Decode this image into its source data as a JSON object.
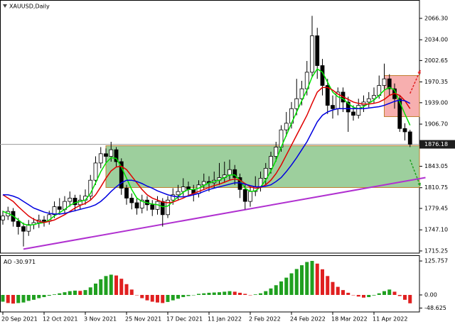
{
  "chart_data": {
    "type": "candlestick",
    "title": "XAUUSD,Daily",
    "categories": [
      "20 Sep 2021",
      null,
      null,
      null,
      null,
      null,
      null,
      null,
      "12 Oct 2021",
      null,
      null,
      null,
      null,
      null,
      null,
      null,
      "3 Nov 2021",
      null,
      null,
      null,
      null,
      null,
      null,
      null,
      "25 Nov 2021",
      null,
      null,
      null,
      null,
      null,
      null,
      null,
      "17 Dec 2021",
      null,
      null,
      null,
      null,
      null,
      null,
      null,
      "11 Jan 2022",
      null,
      null,
      null,
      null,
      null,
      null,
      null,
      "2 Feb 2022",
      null,
      null,
      null,
      null,
      null,
      null,
      null,
      "24 Feb 2022",
      null,
      null,
      null,
      null,
      null,
      null,
      null,
      "18 Mar 2022",
      null,
      null,
      null,
      null,
      null,
      null,
      null,
      "11 Apr 2022",
      null,
      null,
      null,
      null,
      null,
      null,
      null
    ],
    "open": [
      1762,
      1768,
      1775,
      1760,
      1752,
      1745,
      1755,
      1758,
      1762,
      1760,
      1770,
      1782,
      1778,
      1790,
      1795,
      1785,
      1792,
      1798,
      1822,
      1848,
      1862,
      1858,
      1868,
      1850,
      1810,
      1795,
      1788,
      1780,
      1792,
      1785,
      1778,
      1790,
      1770,
      1792,
      1800,
      1805,
      1812,
      1808,
      1802,
      1815,
      1820,
      1818,
      1822,
      1826,
      1830,
      1838,
      1826,
      1808,
      1790,
      1805,
      1812,
      1825,
      1840,
      1858,
      1872,
      1898,
      1908,
      1930,
      1945,
      1960,
      1985,
      2040,
      1995,
      1965,
      1935,
      1930,
      1955,
      1940,
      1925,
      1920,
      1935,
      1940,
      1945,
      1950,
      1965,
      1975,
      1960,
      1945,
      1900,
      1895
    ],
    "high": [
      1776,
      1782,
      1780,
      1765,
      1758,
      1762,
      1765,
      1770,
      1768,
      1776,
      1790,
      1795,
      1798,
      1805,
      1800,
      1800,
      1808,
      1830,
      1858,
      1872,
      1870,
      1880,
      1872,
      1855,
      1815,
      1802,
      1795,
      1800,
      1798,
      1792,
      1798,
      1795,
      1798,
      1810,
      1815,
      1825,
      1820,
      1815,
      1822,
      1832,
      1828,
      1835,
      1848,
      1850,
      1853,
      1845,
      1832,
      1815,
      1812,
      1828,
      1835,
      1848,
      1865,
      1880,
      1905,
      1925,
      1940,
      1975,
      1972,
      2002,
      2070,
      2052,
      2005,
      1975,
      1950,
      1962,
      1962,
      1948,
      1935,
      1945,
      1950,
      1955,
      1962,
      1980,
      1998,
      1982,
      1968,
      1950,
      1908,
      1898
    ],
    "low": [
      1755,
      1762,
      1752,
      1740,
      1722,
      1738,
      1748,
      1750,
      1752,
      1755,
      1765,
      1770,
      1772,
      1782,
      1775,
      1778,
      1785,
      1792,
      1815,
      1840,
      1848,
      1850,
      1842,
      1800,
      1785,
      1778,
      1770,
      1772,
      1776,
      1768,
      1770,
      1752,
      1765,
      1785,
      1792,
      1798,
      1798,
      1790,
      1796,
      1808,
      1805,
      1810,
      1815,
      1818,
      1822,
      1815,
      1795,
      1778,
      1782,
      1798,
      1805,
      1815,
      1832,
      1850,
      1865,
      1888,
      1900,
      1920,
      1935,
      1950,
      1978,
      1975,
      1950,
      1922,
      1915,
      1920,
      1925,
      1895,
      1912,
      1915,
      1925,
      1932,
      1938,
      1945,
      1958,
      1950,
      1930,
      1895,
      1882,
      1872
    ],
    "close": [
      1768,
      1775,
      1760,
      1752,
      1745,
      1755,
      1758,
      1762,
      1760,
      1770,
      1782,
      1778,
      1790,
      1795,
      1785,
      1792,
      1798,
      1822,
      1848,
      1862,
      1858,
      1868,
      1850,
      1810,
      1795,
      1788,
      1780,
      1792,
      1785,
      1778,
      1790,
      1770,
      1792,
      1800,
      1805,
      1812,
      1808,
      1802,
      1815,
      1820,
      1818,
      1822,
      1826,
      1830,
      1838,
      1826,
      1808,
      1790,
      1805,
      1812,
      1825,
      1840,
      1858,
      1872,
      1898,
      1908,
      1930,
      1945,
      1960,
      1985,
      2040,
      1995,
      1965,
      1935,
      1930,
      1955,
      1940,
      1925,
      1920,
      1935,
      1940,
      1945,
      1950,
      1965,
      1975,
      1960,
      1945,
      1900,
      1895,
      1876.18
    ],
    "up_color": "#ffffff",
    "down_color": "#000000",
    "lines": [
      {
        "color": "#00e000",
        "values": [
          1775,
          1772,
          1768,
          1762,
          1756,
          1754,
          1755,
          1757,
          1758,
          1762,
          1768,
          1773,
          1778,
          1784,
          1788,
          1790,
          1792,
          1802,
          1818,
          1835,
          1848,
          1856,
          1855,
          1842,
          1825,
          1808,
          1795,
          1790,
          1788,
          1786,
          1785,
          1782,
          1783,
          1790,
          1797,
          1804,
          1808,
          1808,
          1810,
          1814,
          1818,
          1820,
          1822,
          1826,
          1830,
          1830,
          1822,
          1810,
          1805,
          1806,
          1812,
          1822,
          1836,
          1852,
          1872,
          1890,
          1908,
          1925,
          1942,
          1958,
          1978,
          1990,
          1985,
          1970,
          1955,
          1948,
          1945,
          1938,
          1932,
          1930,
          1933,
          1938,
          1943,
          1950,
          1958,
          1962,
          1958,
          1940,
          1922,
          1905
        ]
      },
      {
        "color": "#e00000",
        "values": [
          1800,
          1795,
          1790,
          1782,
          1775,
          1768,
          1763,
          1760,
          1758,
          1760,
          1762,
          1766,
          1770,
          1775,
          1780,
          1784,
          1787,
          1792,
          1800,
          1812,
          1825,
          1836,
          1842,
          1843,
          1838,
          1828,
          1818,
          1808,
          1800,
          1795,
          1792,
          1789,
          1788,
          1789,
          1792,
          1795,
          1799,
          1802,
          1805,
          1808,
          1811,
          1814,
          1816,
          1819,
          1822,
          1824,
          1822,
          1817,
          1812,
          1810,
          1811,
          1815,
          1822,
          1832,
          1845,
          1860,
          1875,
          1890,
          1905,
          1920,
          1938,
          1955,
          1962,
          1962,
          1958,
          1952,
          1948,
          1944,
          1940,
          1938,
          1937,
          1937,
          1938,
          1940,
          1944,
          1950,
          1953,
          1950,
          1942,
          1930
        ]
      },
      {
        "color": "#0000e0",
        "values": [
          1800,
          1800,
          1798,
          1795,
          1790,
          1785,
          1780,
          1777,
          1774,
          1772,
          1771,
          1771,
          1772,
          1774,
          1776,
          1778,
          1780,
          1782,
          1785,
          1790,
          1797,
          1805,
          1812,
          1818,
          1822,
          1822,
          1820,
          1817,
          1813,
          1810,
          1806,
          1803,
          1800,
          1798,
          1797,
          1797,
          1798,
          1800,
          1802,
          1805,
          1808,
          1810,
          1812,
          1814,
          1816,
          1818,
          1818,
          1816,
          1814,
          1812,
          1812,
          1813,
          1815,
          1820,
          1826,
          1835,
          1845,
          1856,
          1868,
          1880,
          1895,
          1910,
          1920,
          1925,
          1928,
          1930,
          1930,
          1930,
          1930,
          1930,
          1930,
          1931,
          1932,
          1933,
          1935,
          1938,
          1941,
          1943,
          1942,
          1938
        ]
      }
    ],
    "zones": [
      {
        "color": "#3ca03c",
        "border": "#c08030",
        "start": 20,
        "low": 1811,
        "high": 1874
      },
      {
        "color": "#f06060",
        "border": "#c08030",
        "start": 74,
        "low": 1918,
        "high": 1980
      }
    ],
    "trendline": {
      "color": "#b030d0",
      "from": [
        4,
        1718
      ],
      "to": [
        82,
        1826
      ]
    },
    "arrows": [
      {
        "color": "#e02020",
        "from": [
          79,
          1953
        ],
        "to": [
          81,
          1988
        ]
      },
      {
        "color": "#20a020",
        "from": [
          79,
          1853
        ],
        "to": [
          81,
          1813
        ]
      }
    ],
    "ylim": [
      1712,
      2094
    ],
    "yticks": [
      {
        "value": 2066.3,
        "label": "2066.30"
      },
      {
        "value": 2034,
        "label": "2034.00"
      },
      2002.65,
      1970.35,
      {
        "value": 1939,
        "label": "1939.00"
      },
      {
        "value": 1906.7,
        "label": "1906.70"
      },
      1843.05,
      1810.75,
      1779.45,
      {
        "value": 1747.1,
        "label": "1747.10"
      },
      1715.25
    ],
    "ao": {
      "name": "AO",
      "up_color": "#20a020",
      "down_color": "#e02020",
      "values": [
        -25,
        -30,
        -32,
        -30,
        -28,
        -22,
        -18,
        -12,
        -8,
        -3,
        2,
        6,
        10,
        14,
        16,
        15,
        18,
        28,
        42,
        58,
        70,
        75,
        72,
        60,
        40,
        20,
        0,
        -12,
        -20,
        -25,
        -28,
        -30,
        -26,
        -20,
        -14,
        -8,
        -4,
        0,
        4,
        6,
        8,
        9,
        10,
        12,
        14,
        12,
        8,
        4,
        0,
        2,
        6,
        14,
        24,
        36,
        50,
        64,
        80,
        96,
        110,
        122,
        126,
        116,
        95,
        70,
        48,
        30,
        18,
        8,
        0,
        -6,
        -10,
        -8,
        -2,
        6,
        14,
        20,
        12,
        -4,
        -18,
        -30.971
      ],
      "ylim": [
        -63,
        147
      ],
      "yticks": [
        125.757,
        {
          "value": 0,
          "label": "0.00"
        },
        -48.625
      ]
    }
  }
}
